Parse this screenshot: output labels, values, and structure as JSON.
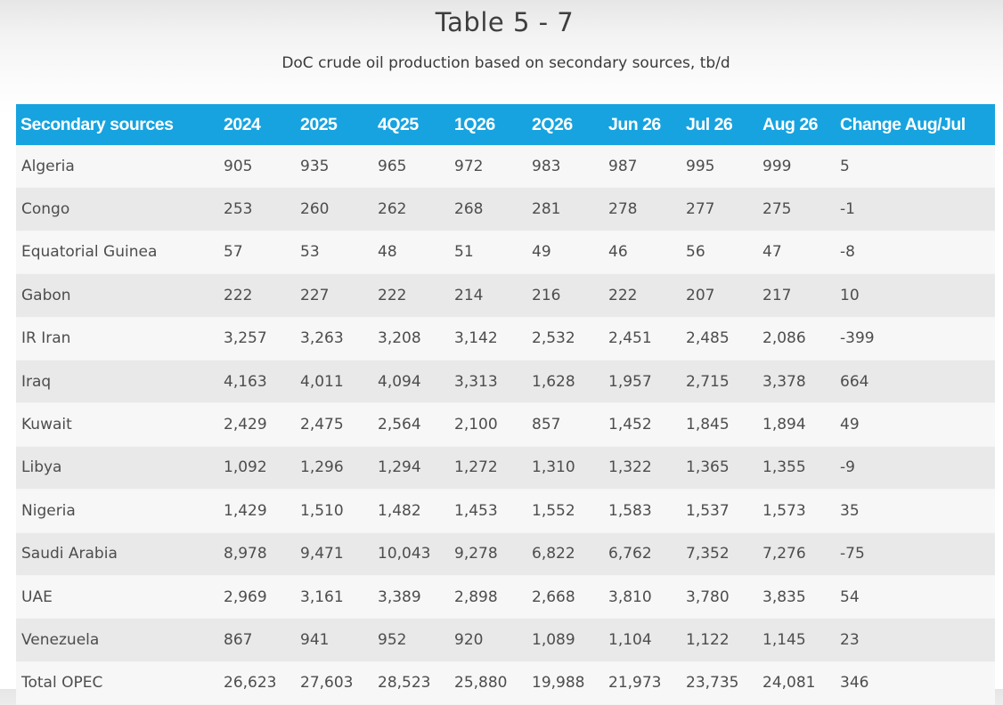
{
  "title": "Table 5 - 7",
  "subtitle": "DoC crude oil production based on secondary sources, tb/d",
  "table": {
    "headers": [
      "Secondary sources",
      "2024",
      "2025",
      "4Q25",
      "1Q26",
      "2Q26",
      "Jun 26",
      "Jul 26",
      "Aug 26",
      "Change Aug/Jul"
    ],
    "rows": [
      [
        "Algeria",
        "905",
        "935",
        "965",
        "972",
        "983",
        "987",
        "995",
        "999",
        "5"
      ],
      [
        "Congo",
        "253",
        "260",
        "262",
        "268",
        "281",
        "278",
        "277",
        "275",
        "-1"
      ],
      [
        "Equatorial Guinea",
        "57",
        "53",
        "48",
        "51",
        "49",
        "46",
        "56",
        "47",
        "-8"
      ],
      [
        "Gabon",
        "222",
        "227",
        "222",
        "214",
        "216",
        "222",
        "207",
        "217",
        "10"
      ],
      [
        "IR Iran",
        "3,257",
        "3,263",
        "3,208",
        "3,142",
        "2,532",
        "2,451",
        "2,485",
        "2,086",
        "-399"
      ],
      [
        "Iraq",
        "4,163",
        "4,011",
        "4,094",
        "3,313",
        "1,628",
        "1,957",
        "2,715",
        "3,378",
        "664"
      ],
      [
        "Kuwait",
        "2,429",
        "2,475",
        "2,564",
        "2,100",
        "857",
        "1,452",
        "1,845",
        "1,894",
        "49"
      ],
      [
        "Libya",
        "1,092",
        "1,296",
        "1,294",
        "1,272",
        "1,310",
        "1,322",
        "1,365",
        "1,355",
        "-9"
      ],
      [
        "Nigeria",
        "1,429",
        "1,510",
        "1,482",
        "1,453",
        "1,552",
        "1,583",
        "1,537",
        "1,573",
        "35"
      ],
      [
        "Saudi Arabia",
        "8,978",
        "9,471",
        "10,043",
        "9,278",
        "6,822",
        "6,762",
        "7,352",
        "7,276",
        "-75"
      ],
      [
        "UAE",
        "2,969",
        "3,161",
        "3,389",
        "2,898",
        "2,668",
        "3,810",
        "3,780",
        "3,835",
        "54"
      ],
      [
        "Venezuela",
        "867",
        "941",
        "952",
        "920",
        "1,089",
        "1,104",
        "1,122",
        "1,145",
        "23"
      ],
      [
        "Total OPEC",
        "26,623",
        "27,603",
        "28,523",
        "25,880",
        "19,988",
        "21,973",
        "23,735",
        "24,081",
        "346"
      ]
    ]
  },
  "colors": {
    "header_bg": "#17a3df",
    "header_text": "#ffffff",
    "row_odd": "#f7f7f7",
    "row_even": "#e9e9e9"
  }
}
